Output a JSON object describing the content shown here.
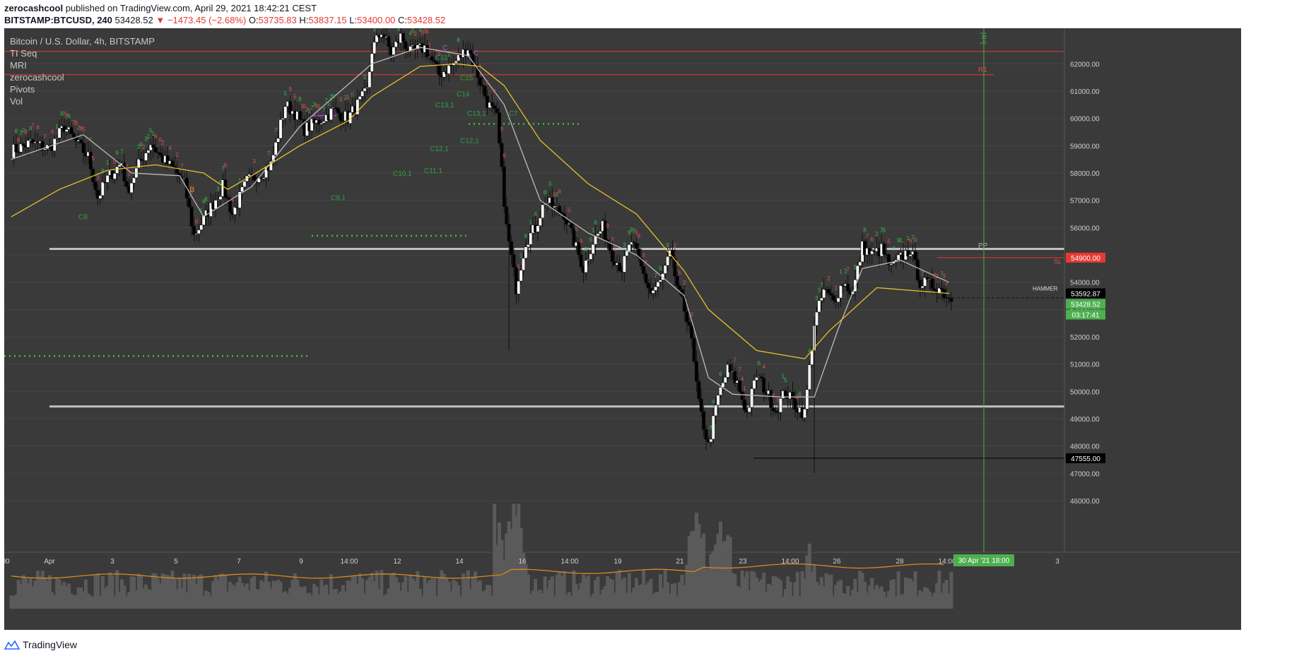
{
  "header": {
    "user": "zerocashcool",
    "published_text": "published on TradingView.com, April 29, 2021 18:42:21 CEST",
    "symbol": "BITSTAMP:BTCUSD, 240",
    "last_price": "53428.52",
    "change": "−1473.45 (−2.68%)",
    "o_label": "O:",
    "o_value": "53735.83",
    "h_label": "H:",
    "h_value": "53837.15",
    "l_label": "L:",
    "l_value": "53400.00",
    "c_label": "C:",
    "c_value": "53428.52"
  },
  "legend": {
    "title": "Bitcoin / U.S. Dollar, 4h, BITSTAMP",
    "indicators": [
      "TI Seq",
      "MRI",
      "zerocashcool",
      "Pivots",
      "Vol"
    ]
  },
  "price_axis": {
    "ticks": [
      "62000.00",
      "61000.00",
      "60000.00",
      "59000.00",
      "58000.00",
      "57000.00",
      "56000.00",
      "55000.00",
      "54000.00",
      "53000.00",
      "52000.00",
      "51000.00",
      "50000.00",
      "49000.00",
      "48000.00",
      "47000.00",
      "46000.00"
    ],
    "labels": [
      {
        "text": "54900.00",
        "bg": "#e53935",
        "fg": "#ffffff",
        "price": 54900
      },
      {
        "text": "53592.87",
        "bg": "#000000",
        "fg": "#ffffff",
        "price": 53592.87
      },
      {
        "text": "53428.52",
        "bg": "#4caf50",
        "fg": "#ffffff",
        "price": 53428.52
      },
      {
        "text": "03:17:41",
        "bg": "#4caf50",
        "fg": "#ffffff",
        "price": 53428.52
      },
      {
        "text": "47555.00",
        "bg": "#000000",
        "fg": "#ffffff",
        "price": 47555
      }
    ]
  },
  "time_axis": {
    "ticks": [
      "00",
      "Apr",
      "3",
      "5",
      "7",
      "9",
      "14:00",
      "12",
      "14",
      "16",
      "14:00",
      "19",
      "21",
      "23",
      "14:00",
      "26",
      "28",
      "14:00",
      "3"
    ],
    "cursor_label": "30 Apr '21  18:00"
  },
  "chart_labels": {
    "pp": "PP",
    "r1": "R1",
    "sl": "SL",
    "hammer": "HAMMER",
    "tf": "[4H]",
    "c_labels": [
      "C8",
      "C9,1",
      "C10,1",
      "C11,1",
      "C12,1",
      "C12,1",
      "C13,1",
      "C7",
      "C13,1",
      "C14",
      "C15",
      "C11",
      "C",
      "C"
    ],
    "b_label": "B"
  },
  "chart_data": {
    "type": "candlestick",
    "title": "Bitcoin / U.S. Dollar, 4h, BITSTAMP",
    "ylim": [
      45200,
      63300
    ],
    "horizontal_levels": [
      {
        "name": "R1 upper",
        "price": 62450,
        "color": "#e53935"
      },
      {
        "name": "R1",
        "price": 61600,
        "color": "#e53935"
      },
      {
        "name": "PP",
        "price": 55220,
        "color": "#c0c0c0"
      },
      {
        "name": "SL",
        "price": 54900,
        "color": "#e53935"
      },
      {
        "name": "support",
        "price": 49450,
        "color": "#c0c0c0"
      },
      {
        "name": "low",
        "price": 47555,
        "color": "#000000"
      }
    ],
    "close_anchors": [
      [
        0,
        58800
      ],
      [
        8,
        59100
      ],
      [
        16,
        58900
      ],
      [
        22,
        59700
      ],
      [
        28,
        59000
      ],
      [
        32,
        58600
      ],
      [
        36,
        57100
      ],
      [
        40,
        57800
      ],
      [
        46,
        58400
      ],
      [
        48,
        57300
      ],
      [
        53,
        58300
      ],
      [
        58,
        59100
      ],
      [
        62,
        58600
      ],
      [
        68,
        58100
      ],
      [
        72,
        57600
      ],
      [
        76,
        55700
      ],
      [
        80,
        56300
      ],
      [
        88,
        57500
      ],
      [
        92,
        56500
      ],
      [
        98,
        57700
      ],
      [
        104,
        58000
      ],
      [
        108,
        58300
      ],
      [
        114,
        60500
      ],
      [
        118,
        60200
      ],
      [
        122,
        59600
      ],
      [
        128,
        59900
      ],
      [
        134,
        60300
      ],
      [
        140,
        60000
      ],
      [
        144,
        60500
      ],
      [
        148,
        61000
      ],
      [
        150,
        62500
      ],
      [
        154,
        63200
      ],
      [
        158,
        62400
      ],
      [
        162,
        63000
      ],
      [
        166,
        62400
      ],
      [
        172,
        62600
      ],
      [
        178,
        61600
      ],
      [
        184,
        62000
      ],
      [
        190,
        62600
      ],
      [
        194,
        61600
      ],
      [
        198,
        60600
      ],
      [
        202,
        60000
      ],
      [
        206,
        56000
      ],
      [
        210,
        53800
      ],
      [
        214,
        55500
      ],
      [
        218,
        56000
      ],
      [
        222,
        57000
      ],
      [
        226,
        56700
      ],
      [
        230,
        56500
      ],
      [
        234,
        55500
      ],
      [
        238,
        54500
      ],
      [
        242,
        55500
      ],
      [
        246,
        56000
      ],
      [
        250,
        55000
      ],
      [
        254,
        54500
      ],
      [
        258,
        55500
      ],
      [
        262,
        54500
      ],
      [
        266,
        53600
      ],
      [
        270,
        54000
      ],
      [
        274,
        55000
      ],
      [
        278,
        53500
      ],
      [
        282,
        52500
      ],
      [
        286,
        49500
      ],
      [
        290,
        48000
      ],
      [
        294,
        49800
      ],
      [
        298,
        50800
      ],
      [
        302,
        50300
      ],
      [
        306,
        49200
      ],
      [
        310,
        50600
      ],
      [
        314,
        50000
      ],
      [
        318,
        49300
      ],
      [
        322,
        50000
      ],
      [
        326,
        49500
      ],
      [
        330,
        49200
      ],
      [
        334,
        52500
      ],
      [
        338,
        53700
      ],
      [
        342,
        53300
      ],
      [
        346,
        54000
      ],
      [
        350,
        53600
      ],
      [
        354,
        55300
      ],
      [
        358,
        55000
      ],
      [
        362,
        55200
      ],
      [
        366,
        54500
      ],
      [
        370,
        54900
      ],
      [
        374,
        55200
      ],
      [
        378,
        54000
      ],
      [
        382,
        53900
      ],
      [
        386,
        53800
      ],
      [
        390,
        53430
      ]
    ],
    "volume_note": "Vol (relative, 0-1)",
    "mri_fast": [
      [
        0,
        58500
      ],
      [
        30,
        59400
      ],
      [
        50,
        58000
      ],
      [
        70,
        57900
      ],
      [
        80,
        56400
      ],
      [
        100,
        57500
      ],
      [
        120,
        59700
      ],
      [
        150,
        62000
      ],
      [
        170,
        62600
      ],
      [
        190,
        62300
      ],
      [
        205,
        60500
      ],
      [
        220,
        57000
      ],
      [
        240,
        55800
      ],
      [
        260,
        55000
      ],
      [
        280,
        53500
      ],
      [
        290,
        50500
      ],
      [
        300,
        49900
      ],
      [
        320,
        49800
      ],
      [
        334,
        49800
      ],
      [
        344,
        52300
      ],
      [
        354,
        54500
      ],
      [
        370,
        54800
      ],
      [
        390,
        54000
      ]
    ],
    "mri_slow": [
      [
        0,
        56400
      ],
      [
        20,
        57400
      ],
      [
        40,
        58100
      ],
      [
        60,
        58300
      ],
      [
        80,
        58000
      ],
      [
        90,
        57400
      ],
      [
        100,
        57900
      ],
      [
        120,
        59000
      ],
      [
        140,
        59900
      ],
      [
        150,
        60800
      ],
      [
        170,
        61900
      ],
      [
        185,
        62000
      ],
      [
        195,
        61900
      ],
      [
        205,
        61200
      ],
      [
        220,
        59200
      ],
      [
        240,
        57600
      ],
      [
        260,
        56500
      ],
      [
        280,
        54400
      ],
      [
        290,
        53000
      ],
      [
        310,
        51500
      ],
      [
        330,
        51200
      ],
      [
        340,
        52200
      ],
      [
        360,
        53800
      ],
      [
        390,
        53590
      ]
    ]
  }
}
